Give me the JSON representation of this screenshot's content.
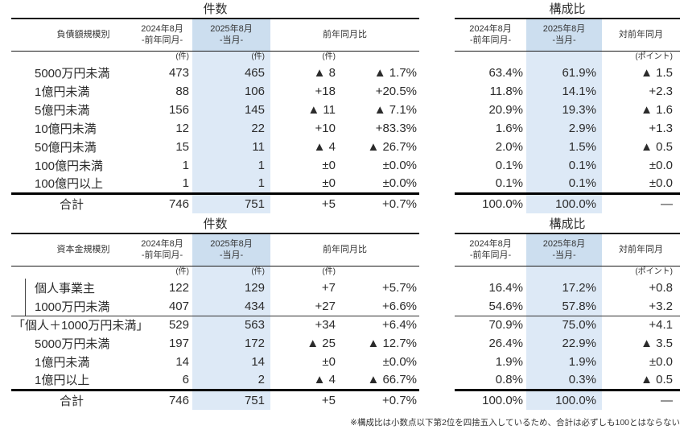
{
  "colors": {
    "highlight_header": "#ccdeef",
    "highlight_body": "#dde9f6",
    "rule": "#000000",
    "text": "#2b2b2b"
  },
  "footnote": "※構成比は小数点以下第2位を四捨五入しているため、合計は必ずしも100とはならない",
  "blocks": [
    {
      "count_title": "件数",
      "ratio_title": "構成比",
      "category_header": "負債額規模別",
      "headers": {
        "prev": "2024年8月",
        "prev_sub": "-前年同月-",
        "curr": "2025年8月",
        "curr_sub": "-当月-",
        "yoy": "前年同月比",
        "vs_prev": "対前年同月",
        "unit_cases": "(件)",
        "unit_points": "(ポイント)"
      },
      "rows": [
        {
          "label": "5000万円未満",
          "prev": "473",
          "curr": "465",
          "diff": "▲ 8",
          "pct": "▲ 1.7%",
          "ratio_prev": "63.4%",
          "ratio_curr": "61.9%",
          "ratio_diff": "▲ 1.5",
          "style": "normal"
        },
        {
          "label": "1億円未満",
          "prev": "88",
          "curr": "106",
          "diff": "+18",
          "pct": "+20.5%",
          "ratio_prev": "11.8%",
          "ratio_curr": "14.1%",
          "ratio_diff": "+2.3",
          "style": "normal"
        },
        {
          "label": "5億円未満",
          "prev": "156",
          "curr": "145",
          "diff": "▲ 11",
          "pct": "▲ 7.1%",
          "ratio_prev": "20.9%",
          "ratio_curr": "19.3%",
          "ratio_diff": "▲ 1.6",
          "style": "normal"
        },
        {
          "label": "10億円未満",
          "prev": "12",
          "curr": "22",
          "diff": "+10",
          "pct": "+83.3%",
          "ratio_prev": "1.6%",
          "ratio_curr": "2.9%",
          "ratio_diff": "+1.3",
          "style": "normal"
        },
        {
          "label": "50億円未満",
          "prev": "15",
          "curr": "11",
          "diff": "▲ 4",
          "pct": "▲ 26.7%",
          "ratio_prev": "2.0%",
          "ratio_curr": "1.5%",
          "ratio_diff": "▲ 0.5",
          "style": "normal"
        },
        {
          "label": "100億円未満",
          "prev": "1",
          "curr": "1",
          "diff": "±0",
          "pct": "±0.0%",
          "ratio_prev": "0.1%",
          "ratio_curr": "0.1%",
          "ratio_diff": "±0.0",
          "style": "normal"
        },
        {
          "label": "100億円以上",
          "prev": "1",
          "curr": "1",
          "diff": "±0",
          "pct": "±0.0%",
          "ratio_prev": "0.1%",
          "ratio_curr": "0.1%",
          "ratio_diff": "±0.0",
          "style": "normal"
        }
      ],
      "total": {
        "label": "合計",
        "prev": "746",
        "curr": "751",
        "diff": "+5",
        "pct": "+0.7%",
        "ratio_prev": "100.0%",
        "ratio_curr": "100.0%",
        "ratio_diff": "—"
      }
    },
    {
      "count_title": "件数",
      "ratio_title": "構成比",
      "category_header": "資本金規模別",
      "headers": {
        "prev": "2024年8月",
        "prev_sub": "-前年同月-",
        "curr": "2025年8月",
        "curr_sub": "-当月-",
        "yoy": "前年同月比",
        "vs_prev": "対前年同月",
        "unit_cases": "(件)",
        "unit_points": "(ポイント)"
      },
      "rows": [
        {
          "label": "個人事業主",
          "prev": "122",
          "curr": "129",
          "diff": "+7",
          "pct": "+5.7%",
          "ratio_prev": "16.4%",
          "ratio_curr": "17.2%",
          "ratio_diff": "+0.8",
          "style": "bracket"
        },
        {
          "label": "1000万円未満",
          "prev": "407",
          "curr": "434",
          "diff": "+27",
          "pct": "+6.6%",
          "ratio_prev": "54.6%",
          "ratio_curr": "57.8%",
          "ratio_diff": "+3.2",
          "style": "bracket"
        },
        {
          "label": "「個人＋1000万円未満」",
          "prev": "529",
          "curr": "563",
          "diff": "+34",
          "pct": "+6.4%",
          "ratio_prev": "70.9%",
          "ratio_curr": "75.0%",
          "ratio_diff": "+4.1",
          "style": "subtotal"
        },
        {
          "label": "5000万円未満",
          "prev": "197",
          "curr": "172",
          "diff": "▲ 25",
          "pct": "▲ 12.7%",
          "ratio_prev": "26.4%",
          "ratio_curr": "22.9%",
          "ratio_diff": "▲ 3.5",
          "style": "normal"
        },
        {
          "label": "1億円未満",
          "prev": "14",
          "curr": "14",
          "diff": "±0",
          "pct": "±0.0%",
          "ratio_prev": "1.9%",
          "ratio_curr": "1.9%",
          "ratio_diff": "±0.0",
          "style": "normal"
        },
        {
          "label": "1億円以上",
          "prev": "6",
          "curr": "2",
          "diff": "▲ 4",
          "pct": "▲ 66.7%",
          "ratio_prev": "0.8%",
          "ratio_curr": "0.3%",
          "ratio_diff": "▲ 0.5",
          "style": "normal"
        }
      ],
      "total": {
        "label": "合計",
        "prev": "746",
        "curr": "751",
        "diff": "+5",
        "pct": "+0.7%",
        "ratio_prev": "100.0%",
        "ratio_curr": "100.0%",
        "ratio_diff": "—"
      }
    }
  ]
}
